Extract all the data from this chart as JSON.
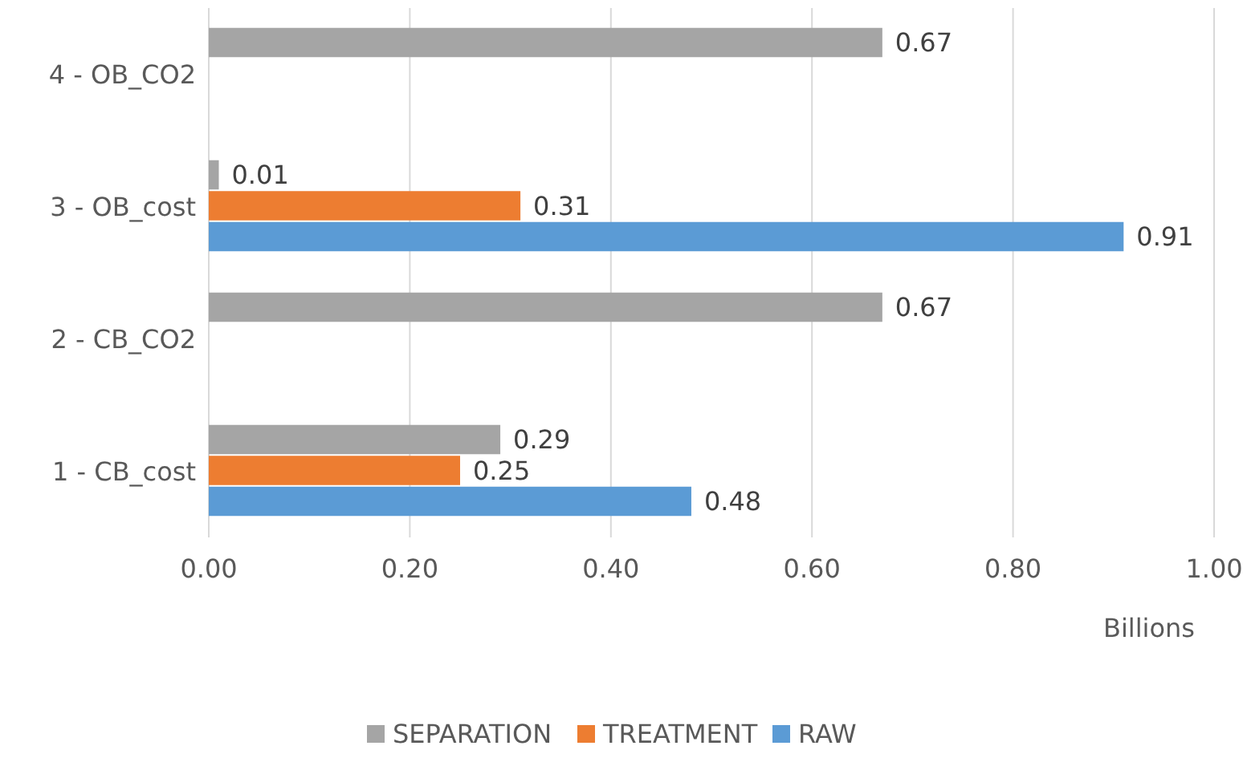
{
  "chart_data": {
    "type": "bar",
    "orientation": "horizontal",
    "categories": [
      "4 - OB_CO2",
      "3 - OB_cost",
      "2 - CB_CO2",
      "1 - CB_cost"
    ],
    "series": [
      {
        "name": "SEPARATION",
        "color": "#a5a5a5",
        "values": [
          0.67,
          0.01,
          0.67,
          0.29
        ]
      },
      {
        "name": "TREATMENT",
        "color": "#ed7d31",
        "values": [
          null,
          0.31,
          null,
          0.25
        ]
      },
      {
        "name": "RAW",
        "color": "#5b9bd5",
        "values": [
          null,
          0.91,
          null,
          0.48
        ]
      }
    ],
    "xlim": [
      0,
      1
    ],
    "xticks": [
      {
        "value": 0,
        "label": "0.00"
      },
      {
        "value": 0.2,
        "label": "0.20"
      },
      {
        "value": 0.4,
        "label": "0.40"
      },
      {
        "value": 0.6,
        "label": "0.60"
      },
      {
        "value": 0.8,
        "label": "0.80"
      },
      {
        "value": 1,
        "label": "1.00"
      }
    ],
    "xlabel": "Billions",
    "grid": "x",
    "legend": "bottom",
    "data_labels": true
  }
}
